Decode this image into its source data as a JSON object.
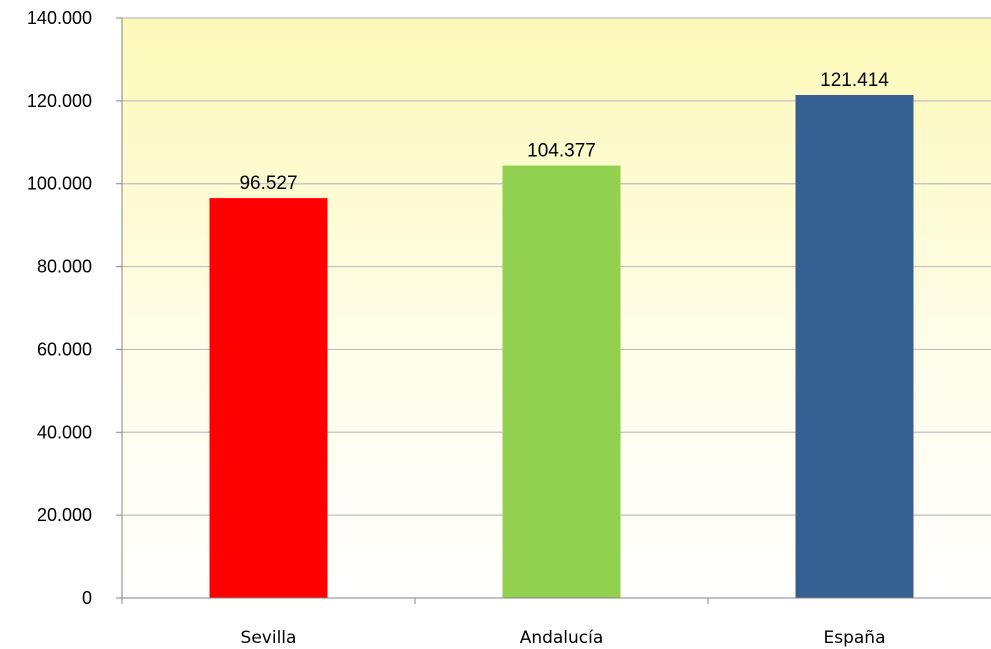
{
  "chart_data": {
    "type": "bar",
    "categories": [
      "Sevilla",
      "Andalucía",
      "España"
    ],
    "values": [
      96527,
      104377,
      121414
    ],
    "value_labels": [
      "96.527",
      "104.377",
      "121.414"
    ],
    "colors": [
      "#ff0000",
      "#92d050",
      "#376092"
    ],
    "ylim": [
      0,
      140000
    ],
    "yticks": [
      0,
      20000,
      40000,
      60000,
      80000,
      100000,
      120000,
      140000
    ],
    "ytick_labels": [
      "0",
      "20.000",
      "40.000",
      "60.000",
      "80.000",
      "100.000",
      "120.000",
      "140.000"
    ],
    "grid": true,
    "legend": "none",
    "plot_background": "yellow-to-white gradient",
    "title": "",
    "xlabel": "",
    "ylabel": ""
  }
}
